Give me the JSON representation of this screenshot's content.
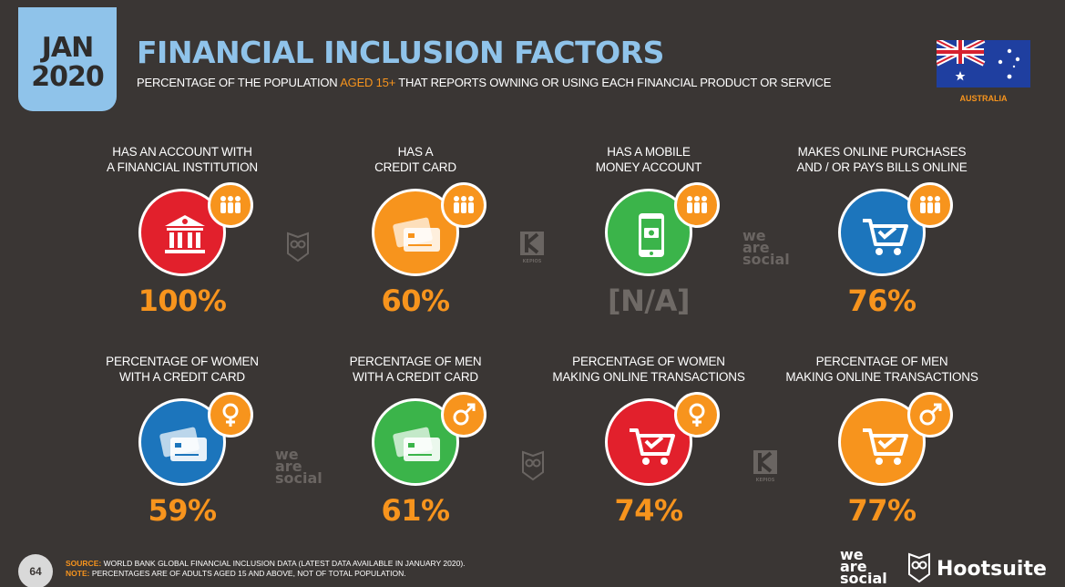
{
  "header": {
    "month": "JAN",
    "year": "2020",
    "title": "FINANCIAL INCLUSION FACTORS",
    "subtitle_pre": "PERCENTAGE OF THE POPULATION ",
    "subtitle_highlight": "AGED 15+",
    "subtitle_post": " THAT REPORTS OWNING OR USING EACH FINANCIAL PRODUCT OR SERVICE",
    "country": "AUSTRALIA"
  },
  "cards": [
    {
      "line1": "HAS AN ACCOUNT WITH",
      "line2": "A FINANCIAL INSTITUTION",
      "value": "100%",
      "icon": "bank-icon",
      "badge_icon": "people-icon",
      "color": "#e2202c"
    },
    {
      "line1": "HAS A",
      "line2": "CREDIT CARD",
      "value": "60%",
      "icon": "credit-card-icon",
      "badge_icon": "people-icon",
      "color": "#f7941d"
    },
    {
      "line1": "HAS A MOBILE",
      "line2": "MONEY ACCOUNT",
      "value": "[N/A]",
      "icon": "mobile-money-icon",
      "badge_icon": "people-icon",
      "color": "#3bb44a"
    },
    {
      "line1": "MAKES ONLINE PURCHASES",
      "line2": "AND / OR PAYS BILLS ONLINE",
      "value": "76%",
      "icon": "shopping-cart-icon",
      "badge_icon": "people-icon",
      "color": "#1c75bc"
    },
    {
      "line1": "PERCENTAGE OF WOMEN",
      "line2": "WITH A CREDIT CARD",
      "value": "59%",
      "icon": "credit-card-icon",
      "badge_icon": "female-icon",
      "color": "#1c75bc"
    },
    {
      "line1": "PERCENTAGE OF MEN",
      "line2": "WITH A CREDIT CARD",
      "value": "61%",
      "icon": "credit-card-icon",
      "badge_icon": "male-icon",
      "color": "#3bb44a"
    },
    {
      "line1": "PERCENTAGE OF WOMEN",
      "line2": "MAKING ONLINE TRANSACTIONS",
      "value": "74%",
      "icon": "shopping-cart-icon",
      "badge_icon": "female-icon",
      "color": "#e2202c"
    },
    {
      "line1": "PERCENTAGE OF MEN",
      "line2": "MAKING ONLINE TRANSACTIONS",
      "value": "77%",
      "icon": "shopping-cart-icon",
      "badge_icon": "male-icon",
      "color": "#f7941d"
    }
  ],
  "footer": {
    "page_number": "64",
    "source_label": "SOURCE:",
    "source_text": " WORLD BANK GLOBAL FINANCIAL INCLUSION DATA (LATEST DATA AVAILABLE IN JANUARY 2020).",
    "note_label": "NOTE:",
    "note_text": " PERCENTAGES ARE OF ADULTS AGED 15 AND ABOVE, NOT OF TOTAL POPULATION.",
    "brand_we": "we",
    "brand_are": "are",
    "brand_social": "social",
    "brand_hootsuite": "Hootsuite",
    "brand_kepios": "KEPIOS"
  },
  "badge_color": "#f7941d"
}
